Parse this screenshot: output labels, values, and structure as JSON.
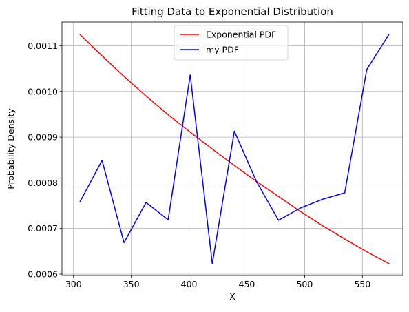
{
  "chart_data": {
    "type": "line",
    "title": "Fitting Data to Exponential Distribution",
    "xlabel": "X",
    "ylabel": "Probability Density",
    "xlim": [
      290,
      585
    ],
    "ylim": [
      0.000597,
      0.001152
    ],
    "xticks": [
      300,
      350,
      400,
      450,
      500,
      550
    ],
    "xtick_labels": [
      "300",
      "350",
      "400",
      "450",
      "500",
      "550"
    ],
    "yticks": [
      0.0006,
      0.0007,
      0.0008,
      0.0009,
      0.001,
      0.0011
    ],
    "ytick_labels": [
      "0.0006",
      "0.0007",
      "0.0008",
      "0.0009",
      "0.0010",
      "0.0011"
    ],
    "grid": true,
    "legend_position": "upper center",
    "series": [
      {
        "name": "Exponential PDF",
        "color": "#ff0000",
        "x": [
          305.5,
          324.7,
          343.7,
          362.8,
          381.9,
          401.0,
          420.1,
          439.2,
          458.3,
          477.4,
          496.5,
          515.6,
          534.7,
          553.8,
          573.0
        ],
        "y": [
          0.001125,
          0.001078,
          0.001033,
          0.00099,
          0.000949,
          0.000911,
          0.000874,
          0.000838,
          0.000803,
          0.00077,
          0.000737,
          0.000706,
          0.000677,
          0.000649,
          0.000623
        ]
      },
      {
        "name": "my PDF",
        "color": "#0000ff",
        "x": [
          305.5,
          324.7,
          343.7,
          362.8,
          381.9,
          401.0,
          420.1,
          439.2,
          458.3,
          477.4,
          496.5,
          515.6,
          534.7,
          553.8,
          573.0
        ],
        "y": [
          0.000758,
          0.000849,
          0.000669,
          0.000757,
          0.000719,
          0.001036,
          0.000623,
          0.000913,
          0.000803,
          0.000718,
          0.000745,
          0.000764,
          0.000778,
          0.001048,
          0.001125
        ]
      }
    ]
  }
}
